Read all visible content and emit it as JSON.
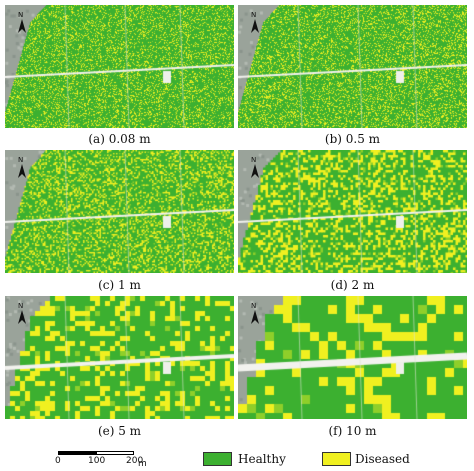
{
  "figure": {
    "panels": [
      {
        "caption": "(a) 0.08 m",
        "resolution_m": 0.08
      },
      {
        "caption": "(b) 0.5 m",
        "resolution_m": 0.5
      },
      {
        "caption": "(c) 1 m",
        "resolution_m": 1
      },
      {
        "caption": "(d) 2 m",
        "resolution_m": 2
      },
      {
        "caption": "(e) 5 m",
        "resolution_m": 5
      },
      {
        "caption": "(f) 10 m",
        "resolution_m": 10
      }
    ],
    "north_letter": "N",
    "scale_bar": {
      "ticks": [
        "0",
        "100",
        "200"
      ],
      "unit": "m"
    },
    "legend": [
      {
        "label": "Healthy",
        "color": "#3cb030"
      },
      {
        "label": "Diseased",
        "color": "#f0f020"
      }
    ],
    "colors": {
      "healthy": "#3cb030",
      "diseased": "#f0f020",
      "background_terrain": "#9aa39a",
      "road": "#f2f2ee"
    }
  }
}
